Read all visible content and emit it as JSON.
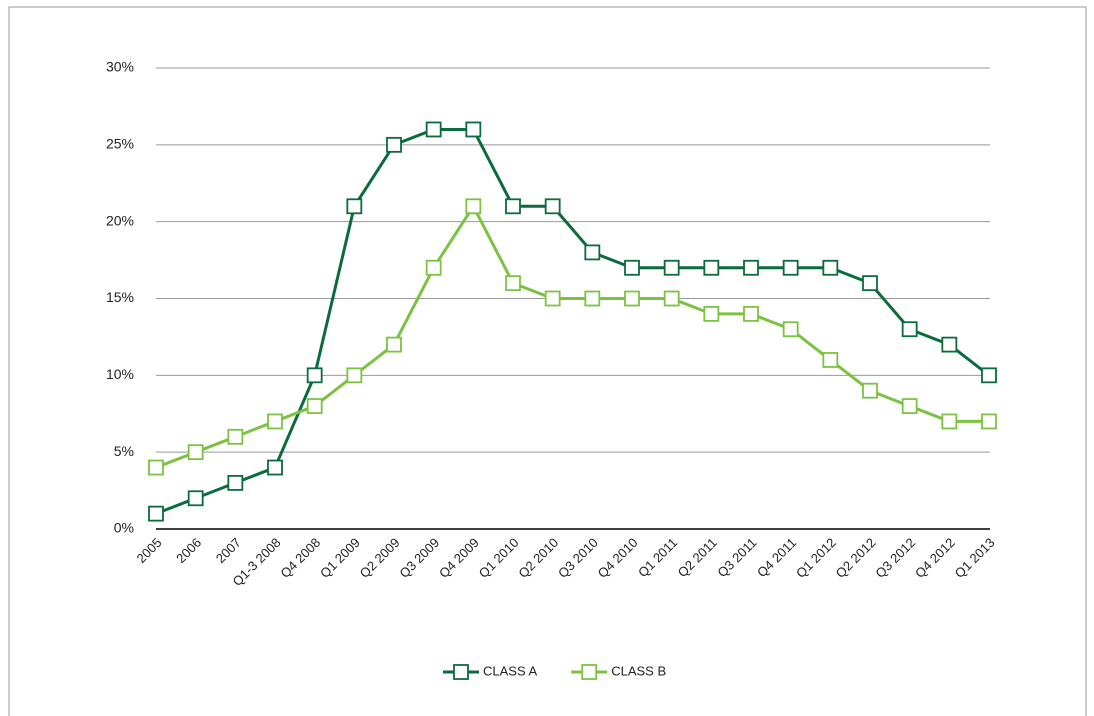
{
  "chart_data": {
    "type": "line",
    "categories": [
      "2005",
      "2006",
      "2007",
      "Q1-3 2008",
      "Q4 2008",
      "Q1 2009",
      "Q2 2009",
      "Q3 2009",
      "Q4 2009",
      "Q1 2010",
      "Q2 2010",
      "Q3 2010",
      "Q4 2010",
      "Q1 2011",
      "Q2 2011",
      "Q3 2011",
      "Q4 2011",
      "Q1 2012",
      "Q2 2012",
      "Q3 2012",
      "Q4 2012",
      "Q1 2013"
    ],
    "series": [
      {
        "name": "CLASS A",
        "color": "#0c6b3c",
        "values": [
          1,
          2,
          3,
          4,
          10,
          21,
          25,
          26,
          26,
          21,
          21,
          18,
          17,
          17,
          17,
          17,
          17,
          17,
          16,
          13,
          12,
          10
        ]
      },
      {
        "name": "CLASS B",
        "color": "#7cc242",
        "values": [
          4,
          5,
          6,
          7,
          8,
          10,
          12,
          17,
          21,
          16,
          15,
          15,
          15,
          15,
          14,
          14,
          13,
          11,
          9,
          8,
          7,
          7
        ]
      }
    ],
    "ylim": [
      0,
      30
    ],
    "yticks": [
      {
        "value": 0,
        "label": "0%"
      },
      {
        "value": 5,
        "label": "5%"
      },
      {
        "value": 10,
        "label": "10%"
      },
      {
        "value": 15,
        "label": "15%"
      },
      {
        "value": 20,
        "label": "20%"
      },
      {
        "value": 25,
        "label": "25%"
      },
      {
        "value": 30,
        "label": "30%"
      }
    ],
    "grid": true,
    "legend": "bottom"
  }
}
